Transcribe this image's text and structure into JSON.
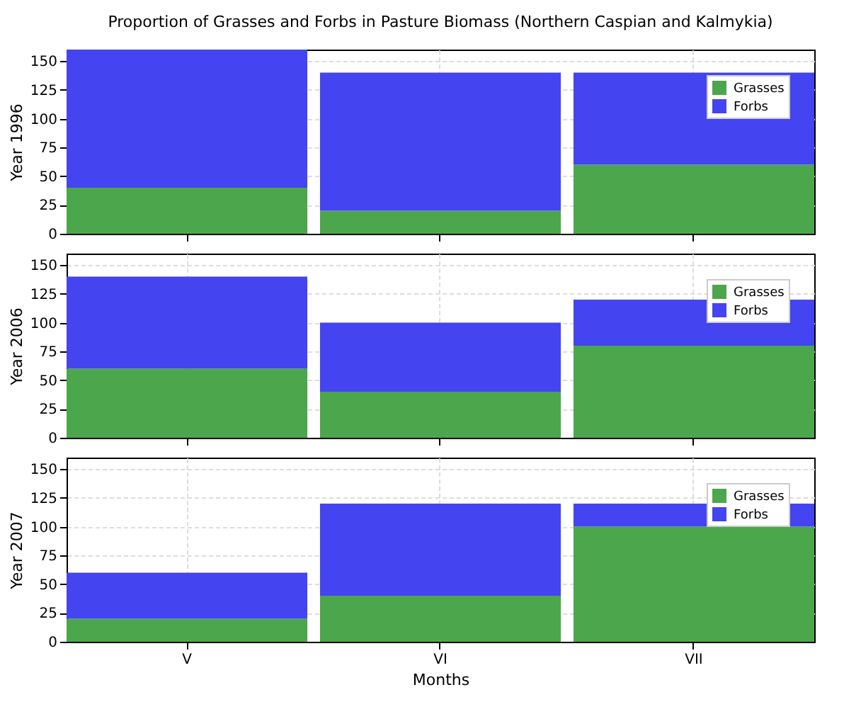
{
  "chart_data": [
    {
      "type": "bar",
      "title": "Proportion of Grasses and Forbs in Pasture Biomass (Northern Caspian and Kalmykia)",
      "ylabel": "Year 1996",
      "categories": [
        null,
        null,
        null
      ],
      "stacked": true,
      "series": [
        {
          "name": "Grasses",
          "color": "#4ca64c",
          "values": [
            40,
            20,
            60
          ]
        },
        {
          "name": "Forbs",
          "color": "#4444f0",
          "values": [
            120,
            120,
            80
          ]
        }
      ],
      "ylim": [
        0,
        160
      ],
      "yticks": [
        0,
        25,
        50,
        75,
        100,
        125,
        150
      ],
      "grid": true,
      "legend": "top right",
      "tick_labels": "y"
    },
    {
      "type": "bar",
      "ylabel": "Year 2006",
      "categories": [
        null,
        null,
        null
      ],
      "stacked": true,
      "series": [
        {
          "name": "Grasses",
          "color": "#4ca64c",
          "values": [
            60,
            40,
            80
          ]
        },
        {
          "name": "Forbs",
          "color": "#4444f0",
          "values": [
            80,
            60,
            40
          ]
        }
      ],
      "ylim": [
        0,
        160
      ],
      "yticks": [
        0,
        25,
        50,
        75,
        100,
        125,
        150
      ],
      "grid": true,
      "legend": "top right",
      "tick_labels": "y"
    },
    {
      "type": "bar",
      "ylabel": "Year 2007",
      "xlabel": "Months",
      "categories": [
        "V",
        "VI",
        "VII"
      ],
      "stacked": true,
      "series": [
        {
          "name": "Grasses",
          "color": "#4ca64c",
          "values": [
            20,
            40,
            100
          ]
        },
        {
          "name": "Forbs",
          "color": "#4444f0",
          "values": [
            40,
            80,
            20
          ]
        }
      ],
      "ylim": [
        0,
        160
      ],
      "yticks": [
        0,
        25,
        50,
        75,
        100,
        125,
        150
      ],
      "grid": true,
      "legend": "top right"
    }
  ]
}
